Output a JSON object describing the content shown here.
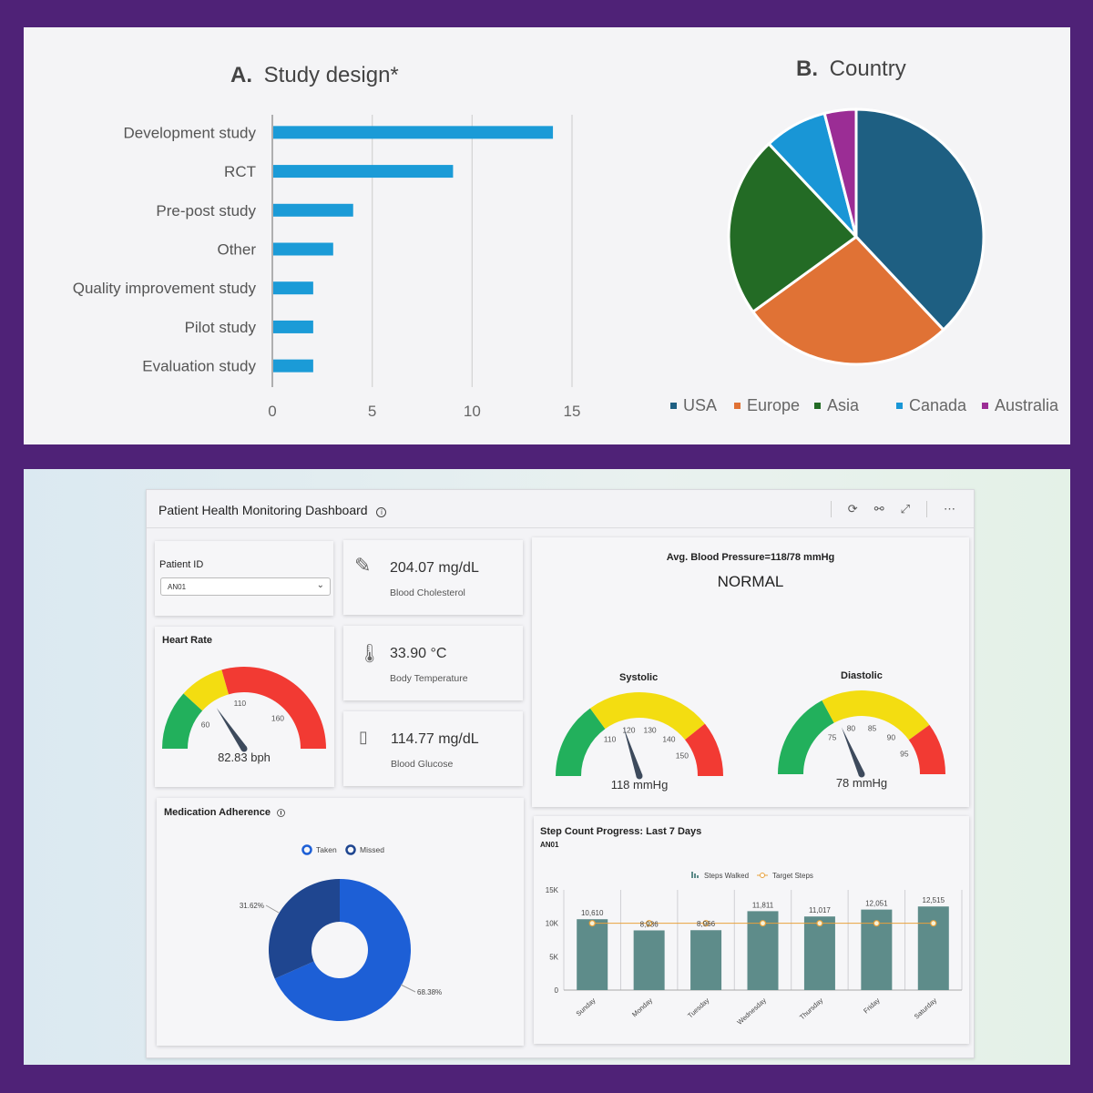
{
  "study_chart": {
    "title_prefix": "A.",
    "title": "Study design*",
    "chart_data": {
      "type": "bar",
      "orientation": "horizontal",
      "categories": [
        "Development study",
        "RCT",
        "Pre-post study",
        "Other",
        "Quality improvement study",
        "Pilot study",
        "Evaluation study"
      ],
      "values": [
        14,
        9,
        4,
        3,
        2,
        2,
        2
      ],
      "xlim": [
        0,
        15
      ],
      "xticks": [
        "0",
        "5",
        "10",
        "15"
      ],
      "bar_color": "#1b9bd7"
    }
  },
  "country_chart": {
    "title_prefix": "B.",
    "title": "Country",
    "chart_data": {
      "type": "pie",
      "labels": [
        "USA",
        "Europe",
        "Asia",
        "Canada",
        "Australia"
      ],
      "values": [
        38,
        27,
        23,
        8,
        4
      ],
      "colors": [
        "#1e5f82",
        "#e07235",
        "#236b25",
        "#1996d6",
        "#9b2d95"
      ]
    }
  },
  "dashboard": {
    "title": "Patient Health Monitoring Dashboard",
    "info_glyph": "i",
    "tools": {
      "refresh": "⟳",
      "view": "⚯",
      "expand": "⤢",
      "more": "⋯"
    },
    "patient": {
      "label": "Patient ID",
      "value": "AN01"
    },
    "cholesterol": {
      "value": "204.07 mg/dL",
      "label": "Blood Cholesterol"
    },
    "temperature": {
      "value": "33.90 °C",
      "label": "Body Temperature"
    },
    "glucose": {
      "value": "114.77 mg/dL",
      "label": "Blood Glucose"
    },
    "heart_rate": {
      "title": "Heart Rate",
      "value": 82.83,
      "readout": "82.83 bph",
      "ticks": [
        "60",
        "110",
        "160"
      ]
    },
    "blood_pressure": {
      "summary": "Avg. Blood Pressure=118/78  mmHg",
      "status": "NORMAL",
      "systolic": {
        "title": "Systolic",
        "value": 118,
        "readout": "118 mmHg",
        "ticks": [
          "110",
          "120",
          "130",
          "140",
          "150"
        ]
      },
      "diastolic": {
        "title": "Diastolic",
        "value": 78,
        "readout": "78 mmHg",
        "ticks": [
          "75",
          "80",
          "85",
          "90",
          "95"
        ]
      }
    },
    "medication": {
      "title": "Medication Adherence",
      "legend": [
        "Taken",
        "Missed"
      ],
      "chart_data": {
        "type": "pie",
        "variant": "donut",
        "labels": [
          "Taken",
          "Missed"
        ],
        "values": [
          68.38,
          31.62
        ],
        "data_labels": [
          "68.38%",
          "31.62%"
        ],
        "colors": [
          "#1d5fd6",
          "#1f4690"
        ]
      }
    },
    "steps": {
      "title": "Step Count Progress: Last 7 Days",
      "subtitle": "AN01",
      "legend": [
        "Steps Walked",
        "Target Steps"
      ],
      "chart_data": {
        "type": "bar",
        "categories": [
          "Sunday",
          "Monday",
          "Tuesday",
          "Wednesday",
          "Thursday",
          "Friday",
          "Saturday"
        ],
        "series": [
          {
            "name": "Steps Walked",
            "values": [
              10610,
              8936,
              8966,
              11811,
              11017,
              12051,
              12515
            ]
          },
          {
            "name": "Target Steps",
            "values": [
              10000,
              10000,
              10000,
              10000,
              10000,
              10000,
              10000
            ]
          }
        ],
        "data_labels": [
          "10,610",
          "8,936",
          "8,966",
          "11,811",
          "11,017",
          "12,051",
          "12,515"
        ],
        "ylim": [
          0,
          15000
        ],
        "yticks": [
          "0",
          "5K",
          "10K",
          "15K"
        ],
        "colors": {
          "bars": "#5e8c8a",
          "target": "#e8a13c"
        }
      }
    }
  }
}
